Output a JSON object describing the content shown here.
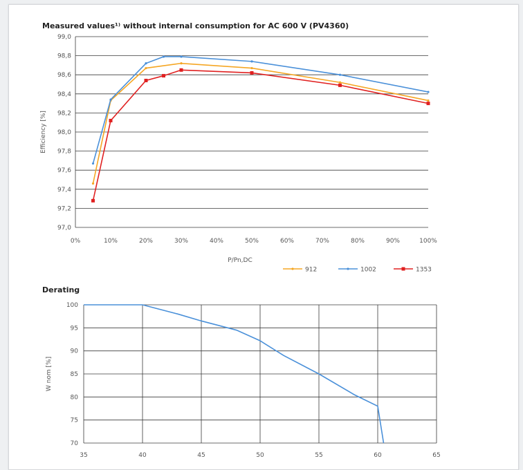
{
  "colors": {
    "series_912": "#f5a623",
    "series_1002": "#4a90d9",
    "series_1353": "#e02020",
    "derating_line": "#4a90d9"
  },
  "chart_data": [
    {
      "type": "line",
      "title": "Measured values¹⁾ without internal consumption for AC 600 V (PV4360)",
      "xlabel": "P/Pn,DC",
      "ylabel": "Efficiency [%]",
      "xlim": [
        0,
        100
      ],
      "ylim": [
        97.0,
        99.0
      ],
      "x_ticks": [
        "0%",
        "10%",
        "20%",
        "30%",
        "40%",
        "50%",
        "60%",
        "70%",
        "80%",
        "90%",
        "100%"
      ],
      "y_ticks": [
        "97,0",
        "97,2",
        "97,4",
        "97,6",
        "97,8",
        "98,0",
        "98,2",
        "98,4",
        "98,6",
        "98,8",
        "99,0"
      ],
      "grid": "horizontal",
      "legend_position": "bottom-right",
      "series": [
        {
          "name": "912",
          "x": [
            5,
            10,
            20,
            30,
            50,
            75,
            100
          ],
          "y": [
            97.46,
            98.33,
            98.67,
            98.72,
            98.67,
            98.52,
            98.33
          ]
        },
        {
          "name": "1002",
          "x": [
            5,
            10,
            20,
            25,
            30,
            50,
            75,
            100
          ],
          "y": [
            97.67,
            98.34,
            98.72,
            98.79,
            98.79,
            98.74,
            98.6,
            98.42
          ]
        },
        {
          "name": "1353",
          "x": [
            5,
            10,
            20,
            25,
            30,
            50,
            75,
            100
          ],
          "y": [
            97.28,
            98.12,
            98.54,
            98.59,
            98.65,
            98.62,
            98.49,
            98.3
          ]
        }
      ]
    },
    {
      "type": "line",
      "title": "Derating",
      "xlabel": "",
      "ylabel": "W nom [%]",
      "xlim": [
        35,
        65
      ],
      "ylim": [
        70,
        100
      ],
      "x_ticks": [
        "35",
        "40",
        "45",
        "50",
        "55",
        "60",
        "65"
      ],
      "y_ticks": [
        "70",
        "75",
        "80",
        "85",
        "90",
        "95",
        "100"
      ],
      "grid": "both",
      "series": [
        {
          "x": [
            35,
            40,
            43,
            45,
            48,
            50,
            52,
            55,
            58,
            60,
            60.5
          ],
          "y": [
            100,
            100,
            98,
            96.5,
            94.5,
            92.2,
            89,
            85,
            80.5,
            78,
            70
          ]
        }
      ]
    }
  ]
}
